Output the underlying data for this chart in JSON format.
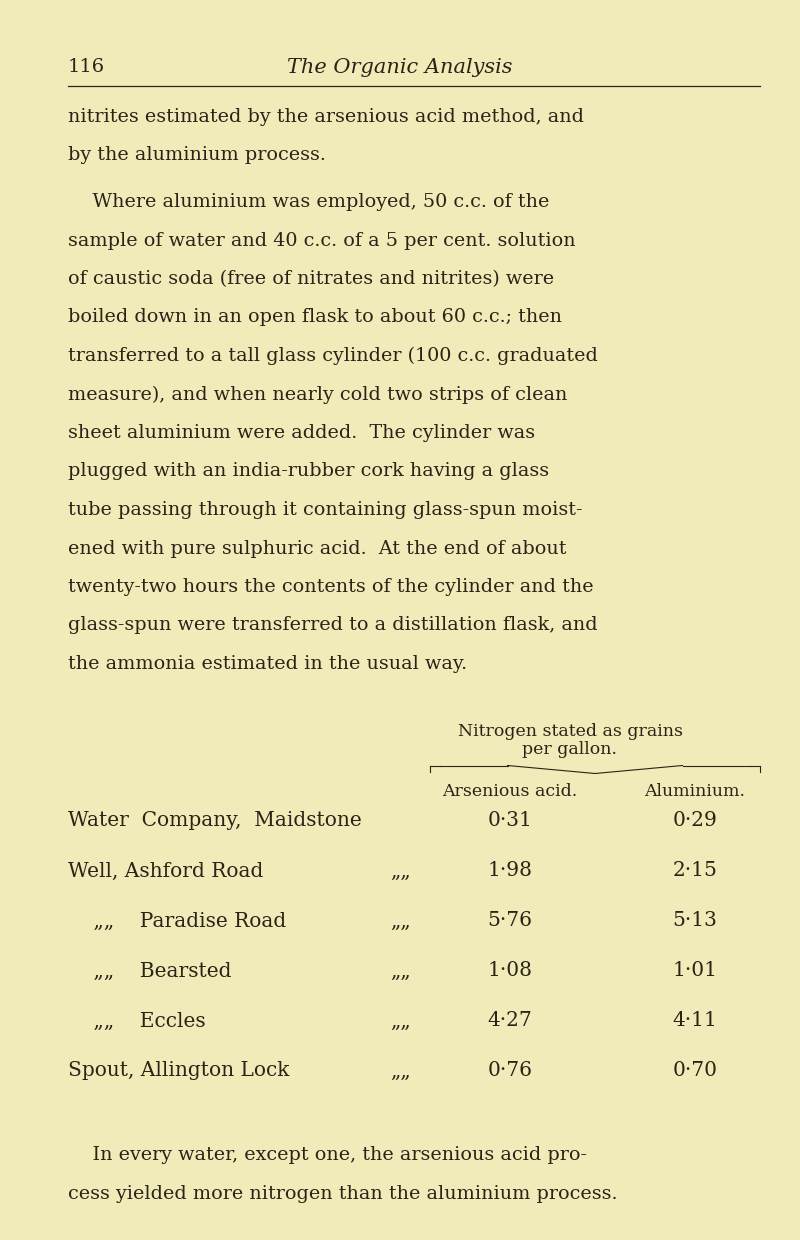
{
  "page_number": "116",
  "page_title": "The Organic Analysis",
  "background_color": "#f0ebb8",
  "text_color": "#2a2318",
  "para1_lines": [
    "nitrites estimated by the arsenious acid method, and",
    "by the aluminium process."
  ],
  "para2_lines": [
    "    Where aluminium was employed, 50 c.c. of the",
    "sample of water and 40 c.c. of a 5 per cent. solution",
    "of caustic soda (free of nitrates and nitrites) were",
    "boiled down in an open flask to about 60 c.c.; then",
    "transferred to a tall glass cylinder (100 c.c. graduated",
    "measure), and when nearly cold two strips of clean",
    "sheet aluminium were added.  The cylinder was",
    "plugged with an india-rubber cork having a glass",
    "tube passing through it containing glass-spun moist-",
    "ened with pure sulphuric acid.  At the end of about",
    "twenty-two hours the contents of the cylinder and the",
    "glass-spun were transferred to a distillation flask, and",
    "the ammonia estimated in the usual way."
  ],
  "table_header1": "Nitrogen stated as grains",
  "table_header2": "per gallon.",
  "col1_header": "Arsenious acid.",
  "col2_header": "Aluminium.",
  "table_rows": [
    {
      "label1": "Water  Company,  Maidstone",
      "label2": "",
      "val1": "0·31",
      "val2": "0·29"
    },
    {
      "label1": "Well, Ashford Road",
      "label2": "„„",
      "val1": "1·98",
      "val2": "2·15"
    },
    {
      "label1": "    „„    Paradise Road",
      "label2": "„„",
      "val1": "5·76",
      "val2": "5·13"
    },
    {
      "label1": "    „„    Bearsted",
      "label2": "„„",
      "val1": "1·08",
      "val2": "1·01"
    },
    {
      "label1": "    „„    Eccles",
      "label2": "„„",
      "val1": "4·27",
      "val2": "4·11"
    },
    {
      "label1": "Spout, Allington Lock",
      "label2": "„„",
      "val1": "0·76",
      "val2": "0·70"
    }
  ],
  "footer_lines": [
    "    In every water, except one, the arsenious acid pro-",
    "cess yielded more nitrogen than the aluminium process."
  ]
}
